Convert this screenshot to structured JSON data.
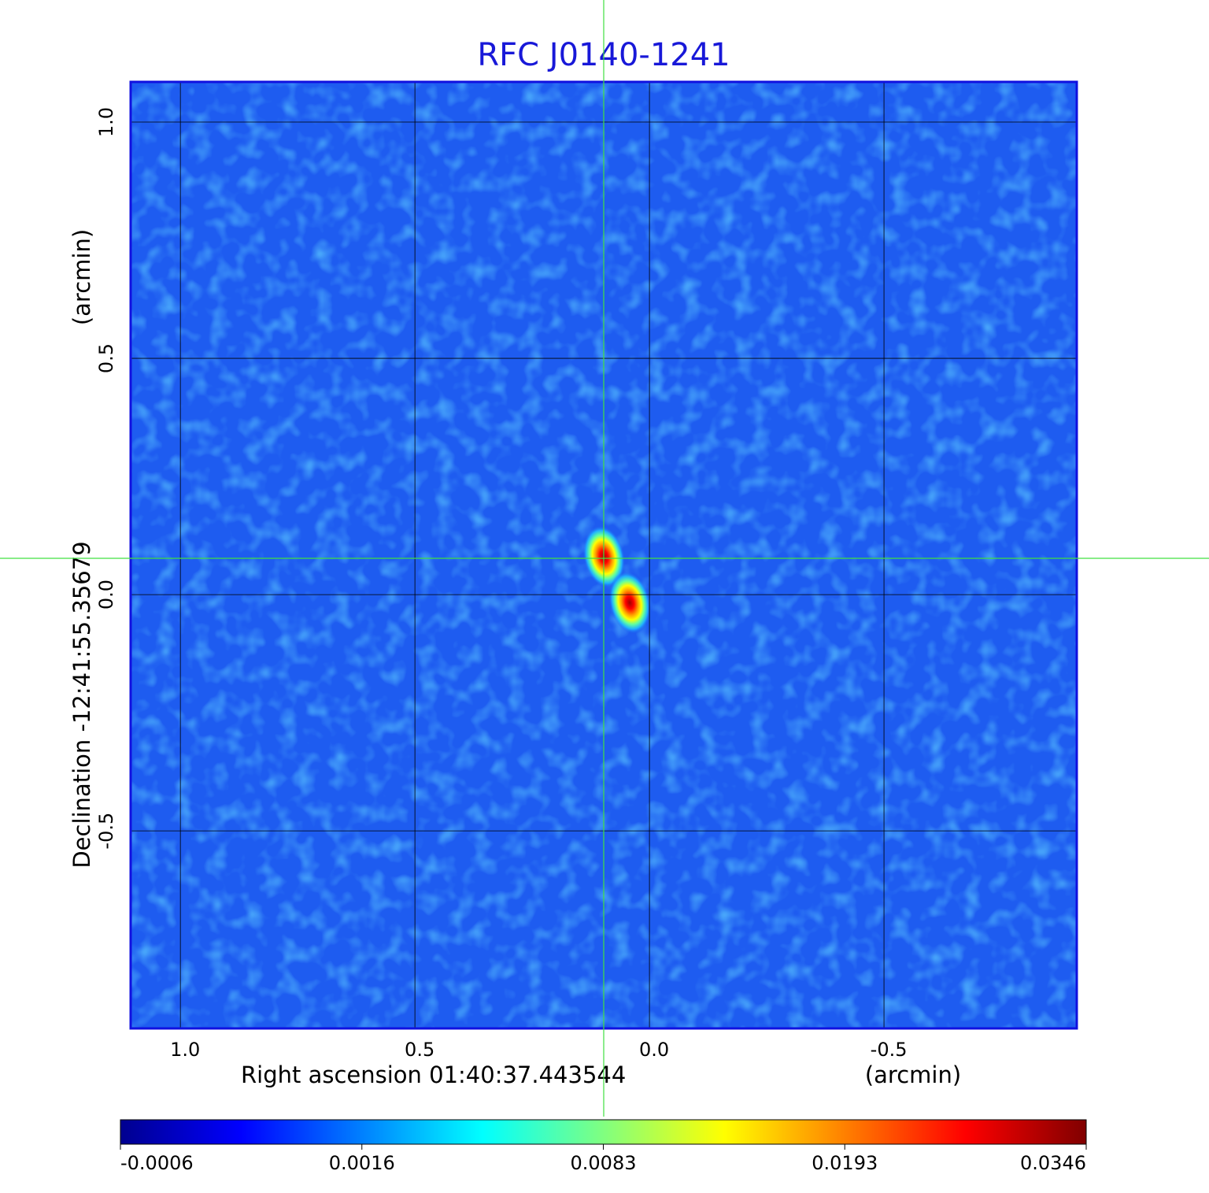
{
  "chart_data": {
    "type": "image",
    "title": "RFC J0140-1241",
    "x_label": "Right ascension  01:40:37.443544",
    "x_unit": "(arcmin)",
    "y_label": "Declination  -12:41:55.35679",
    "y_unit": "(arcmin)",
    "xlim": [
      1.106,
      -0.911
    ],
    "ylim": [
      -0.918,
      1.085
    ],
    "xticks": [
      {
        "value": 1,
        "label": "1.0"
      },
      0.5,
      {
        "value": 0,
        "label": "0.0"
      },
      -0.5
    ],
    "yticks": [
      {
        "value": 1,
        "label": "1.0"
      },
      0.5,
      {
        "value": 0,
        "label": "0.0"
      },
      -0.5
    ],
    "grid": true,
    "sources": {
      "x": [
        0.097,
        0.042
      ],
      "y": [
        0.08,
        -0.017
      ],
      "values": [
        0.0346,
        0.0346
      ]
    },
    "colorbar": {
      "ticks": [
        -0.0006,
        0.0016,
        0.0083,
        0.0193,
        0.0346
      ],
      "colors": [
        "#00008f",
        "#0000ff",
        "#0080ff",
        "#00ffff",
        "#80ff80",
        "#ffff00",
        "#ff8000",
        "#ff0000",
        "#800000"
      ]
    }
  }
}
